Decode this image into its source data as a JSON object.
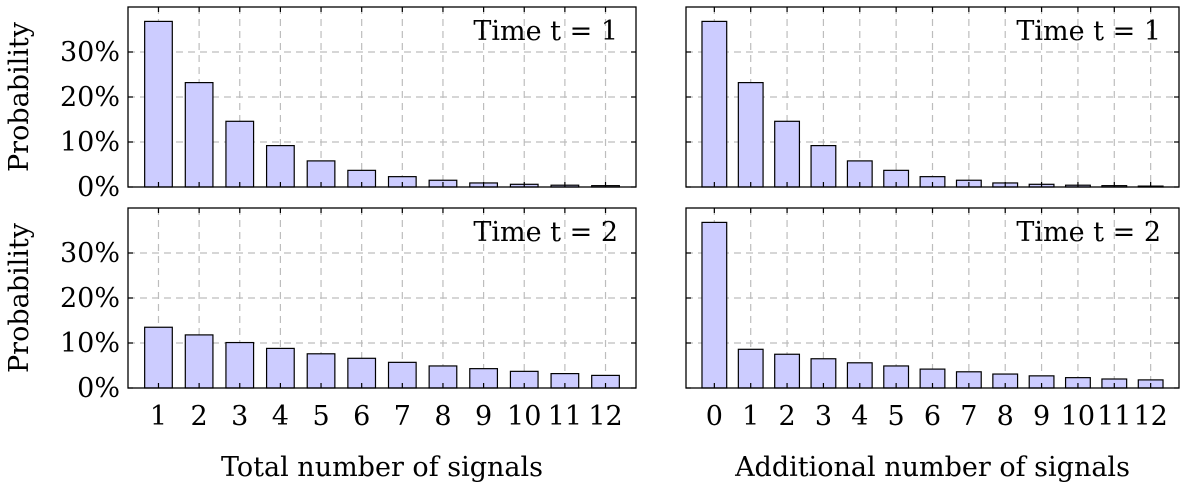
{
  "chart_data": [
    {
      "type": "bar",
      "panel_label": "Time t = 1",
      "ylabel": "Probability",
      "xlabel": "",
      "ylim": [
        0,
        0.4
      ],
      "yticks": [
        "0%",
        "10%",
        "20%",
        "30%"
      ],
      "ytick_values": [
        0,
        0.1,
        0.2,
        0.3
      ],
      "categories": [
        "1",
        "2",
        "3",
        "4",
        "5",
        "6",
        "7",
        "8",
        "9",
        "10",
        "11",
        "12"
      ],
      "values": [
        0.368,
        0.232,
        0.146,
        0.092,
        0.058,
        0.037,
        0.023,
        0.015,
        0.009,
        0.006,
        0.004,
        0.003
      ],
      "show_x_ticklabels": false,
      "show_y_ticklabels": true
    },
    {
      "type": "bar",
      "panel_label": "Time t = 1",
      "ylabel": "",
      "xlabel": "",
      "ylim": [
        0,
        0.4
      ],
      "yticks": [
        "0%",
        "10%",
        "20%",
        "30%"
      ],
      "ytick_values": [
        0,
        0.1,
        0.2,
        0.3
      ],
      "categories": [
        "0",
        "1",
        "2",
        "3",
        "4",
        "5",
        "6",
        "7",
        "8",
        "9",
        "10",
        "11",
        "12"
      ],
      "values": [
        0.368,
        0.232,
        0.146,
        0.092,
        0.058,
        0.037,
        0.023,
        0.015,
        0.009,
        0.006,
        0.004,
        0.003,
        0.002
      ],
      "show_x_ticklabels": false,
      "show_y_ticklabels": false
    },
    {
      "type": "bar",
      "panel_label": "Time t = 2",
      "ylabel": "Probability",
      "xlabel": "Total number of signals",
      "ylim": [
        0,
        0.4
      ],
      "yticks": [
        "0%",
        "10%",
        "20%",
        "30%"
      ],
      "ytick_values": [
        0,
        0.1,
        0.2,
        0.3
      ],
      "categories": [
        "1",
        "2",
        "3",
        "4",
        "5",
        "6",
        "7",
        "8",
        "9",
        "10",
        "11",
        "12"
      ],
      "values": [
        0.135,
        0.118,
        0.101,
        0.088,
        0.076,
        0.066,
        0.057,
        0.049,
        0.043,
        0.037,
        0.032,
        0.028
      ],
      "show_x_ticklabels": true,
      "show_y_ticklabels": true
    },
    {
      "type": "bar",
      "panel_label": "Time t = 2",
      "ylabel": "",
      "xlabel": "Additional number of signals",
      "ylim": [
        0,
        0.4
      ],
      "yticks": [
        "0%",
        "10%",
        "20%",
        "30%"
      ],
      "ytick_values": [
        0,
        0.1,
        0.2,
        0.3
      ],
      "categories": [
        "0",
        "1",
        "2",
        "3",
        "4",
        "5",
        "6",
        "7",
        "8",
        "9",
        "10",
        "11",
        "12"
      ],
      "values": [
        0.368,
        0.086,
        0.075,
        0.065,
        0.056,
        0.049,
        0.042,
        0.036,
        0.031,
        0.027,
        0.023,
        0.02,
        0.018
      ],
      "show_x_ticklabels": true,
      "show_y_ticklabels": false
    }
  ]
}
